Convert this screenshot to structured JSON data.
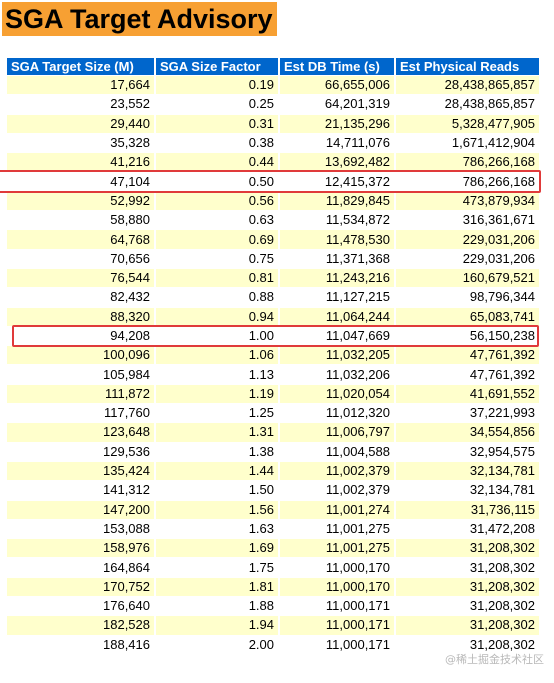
{
  "title": "SGA Target Advisory",
  "columns": [
    "SGA Target Size (M)",
    "SGA Size Factor",
    "Est DB Time (s)",
    "Est Physical Reads"
  ],
  "rows": [
    [
      "17,664",
      "0.19",
      "66,655,006",
      "28,438,865,857"
    ],
    [
      "23,552",
      "0.25",
      "64,201,319",
      "28,438,865,857"
    ],
    [
      "29,440",
      "0.31",
      "21,135,296",
      "5,328,477,905"
    ],
    [
      "35,328",
      "0.38",
      "14,711,076",
      "1,671,412,904"
    ],
    [
      "41,216",
      "0.44",
      "13,692,482",
      "786,266,168"
    ],
    [
      "47,104",
      "0.50",
      "12,415,372",
      "786,266,168"
    ],
    [
      "52,992",
      "0.56",
      "11,829,845",
      "473,879,934"
    ],
    [
      "58,880",
      "0.63",
      "11,534,872",
      "316,361,671"
    ],
    [
      "64,768",
      "0.69",
      "11,478,530",
      "229,031,206"
    ],
    [
      "70,656",
      "0.75",
      "11,371,368",
      "229,031,206"
    ],
    [
      "76,544",
      "0.81",
      "11,243,216",
      "160,679,521"
    ],
    [
      "82,432",
      "0.88",
      "11,127,215",
      "98,796,344"
    ],
    [
      "88,320",
      "0.94",
      "11,064,244",
      "65,083,741"
    ],
    [
      "94,208",
      "1.00",
      "11,047,669",
      "56,150,238"
    ],
    [
      "100,096",
      "1.06",
      "11,032,205",
      "47,761,392"
    ],
    [
      "105,984",
      "1.13",
      "11,032,206",
      "47,761,392"
    ],
    [
      "111,872",
      "1.19",
      "11,020,054",
      "41,691,552"
    ],
    [
      "117,760",
      "1.25",
      "11,012,320",
      "37,221,993"
    ],
    [
      "123,648",
      "1.31",
      "11,006,797",
      "34,554,856"
    ],
    [
      "129,536",
      "1.38",
      "11,004,588",
      "32,954,575"
    ],
    [
      "135,424",
      "1.44",
      "11,002,379",
      "32,134,781"
    ],
    [
      "141,312",
      "1.50",
      "11,002,379",
      "32,134,781"
    ],
    [
      "147,200",
      "1.56",
      "11,001,274",
      "31,736,115"
    ],
    [
      "153,088",
      "1.63",
      "11,001,275",
      "31,472,208"
    ],
    [
      "158,976",
      "1.69",
      "11,001,275",
      "31,208,302"
    ],
    [
      "164,864",
      "1.75",
      "11,000,170",
      "31,208,302"
    ],
    [
      "170,752",
      "1.81",
      "11,000,170",
      "31,208,302"
    ],
    [
      "176,640",
      "1.88",
      "11,000,171",
      "31,208,302"
    ],
    [
      "182,528",
      "1.94",
      "11,000,171",
      "31,208,302"
    ],
    [
      "188,416",
      "2.00",
      "11,000,171",
      "31,208,302"
    ]
  ],
  "highlighted_rows": [
    5,
    13
  ],
  "watermark": "@稀土掘金技术社区",
  "colors": {
    "title_background": "#f7a033",
    "header_background": "#0066cc",
    "header_text": "#ffffff",
    "odd_row": "#ffffcc",
    "even_row": "#ffffff",
    "highlight_border": "#e03a3a"
  }
}
